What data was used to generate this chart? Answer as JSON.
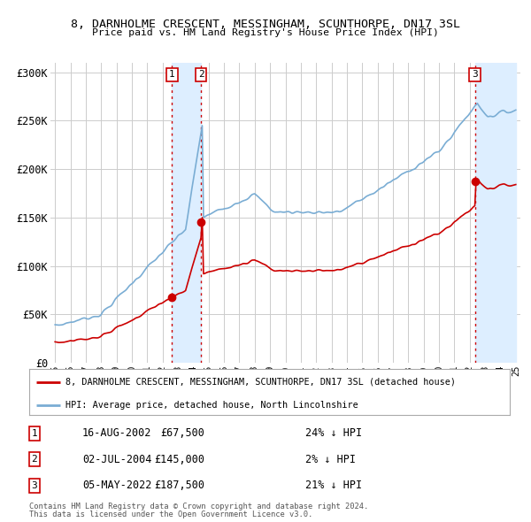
{
  "title": "8, DARNHOLME CRESCENT, MESSINGHAM, SCUNTHORPE, DN17 3SL",
  "subtitle": "Price paid vs. HM Land Registry's House Price Index (HPI)",
  "ylim": [
    0,
    310000
  ],
  "yticks": [
    0,
    50000,
    100000,
    150000,
    200000,
    250000,
    300000
  ],
  "ytick_labels": [
    "£0",
    "£50K",
    "£100K",
    "£150K",
    "£200K",
    "£250K",
    "£300K"
  ],
  "hpi_color": "#7aadd4",
  "price_color": "#cc0000",
  "shade_color": "#ddeeff",
  "background_color": "#ffffff",
  "grid_color": "#cccccc",
  "sales": [
    {
      "date_num": 2002.62,
      "price": 67500,
      "label": "1"
    },
    {
      "date_num": 2004.5,
      "price": 145000,
      "label": "2"
    },
    {
      "date_num": 2022.34,
      "price": 187500,
      "label": "3"
    }
  ],
  "legend_line1": "8, DARNHOLME CRESCENT, MESSINGHAM, SCUNTHORPE, DN17 3SL (detached house)",
  "legend_line2": "HPI: Average price, detached house, North Lincolnshire",
  "table": [
    [
      "1",
      "16-AUG-2002",
      "£67,500",
      "24% ↓ HPI"
    ],
    [
      "2",
      "02-JUL-2004",
      "£145,000",
      "2% ↓ HPI"
    ],
    [
      "3",
      "05-MAY-2022",
      "£187,500",
      "21% ↓ HPI"
    ]
  ],
  "footer1": "Contains HM Land Registry data © Crown copyright and database right 2024.",
  "footer2": "This data is licensed under the Open Government Licence v3.0."
}
